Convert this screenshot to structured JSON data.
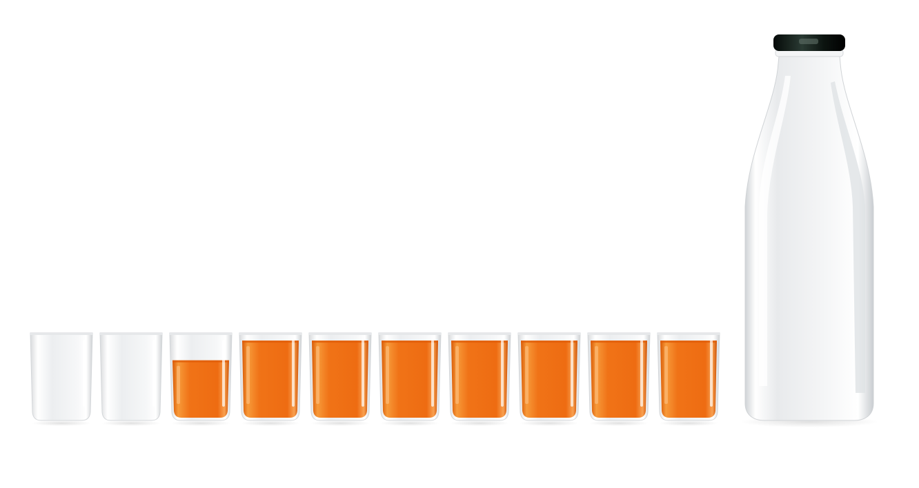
{
  "scene": {
    "background": "#ffffff",
    "juice_color": "#f07014",
    "juice_color_dark": "#d85a08",
    "glass_color": "#f2f3f4",
    "cap_color": "#0f1a14"
  },
  "glasses": [
    {
      "fill": 0.0
    },
    {
      "fill": 0.0
    },
    {
      "fill": 0.7
    },
    {
      "fill": 0.94
    },
    {
      "fill": 0.94
    },
    {
      "fill": 0.94
    },
    {
      "fill": 0.94
    },
    {
      "fill": 0.94
    },
    {
      "fill": 0.94
    },
    {
      "fill": 0.94
    }
  ],
  "bottle": {
    "fill": 0.0
  }
}
